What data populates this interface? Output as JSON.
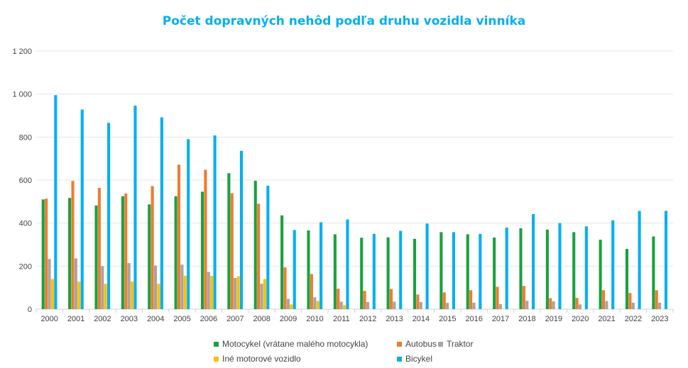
{
  "chart_data": {
    "type": "bar",
    "title": "Počet dopravných nehôd podľa druhu vozidla vinníka",
    "xlabel": "",
    "ylabel": "",
    "ylim": [
      0,
      1200
    ],
    "yticks": [
      0,
      200,
      400,
      600,
      800,
      1000,
      1200
    ],
    "ytick_labels": [
      "0",
      "200",
      "400",
      "600",
      "800",
      "1 000",
      "1 200"
    ],
    "grid": "horizontal",
    "legend_position": "bottom",
    "title_color": "#00B0F0",
    "categories": [
      "2000",
      "2001",
      "2002",
      "2003",
      "2004",
      "2005",
      "2006",
      "2007",
      "2008",
      "2009",
      "2010",
      "2011",
      "2012",
      "2013",
      "2014",
      "2015",
      "2016",
      "2017",
      "2018",
      "2019",
      "2020",
      "2021",
      "2022",
      "2023"
    ],
    "series": [
      {
        "name": "Motocykel (vrátane malého motocykla)",
        "color": "#1BA13F",
        "values": [
          510,
          517,
          482,
          525,
          487,
          525,
          546,
          632,
          597,
          436,
          366,
          348,
          332,
          334,
          327,
          358,
          348,
          333,
          376,
          370,
          358,
          323,
          280,
          338
        ]
      },
      {
        "name": "Autobus",
        "color": "#ED7D31",
        "values": [
          514,
          596,
          564,
          538,
          572,
          672,
          648,
          539,
          490,
          194,
          163,
          95,
          85,
          94,
          68,
          78,
          88,
          104,
          108,
          51,
          52,
          88,
          75,
          88
        ]
      },
      {
        "name": "Traktor",
        "color": "#A5A5A5",
        "values": [
          233,
          236,
          200,
          214,
          203,
          207,
          173,
          145,
          118,
          48,
          55,
          35,
          33,
          35,
          33,
          29,
          30,
          23,
          39,
          36,
          22,
          38,
          30,
          30
        ]
      },
      {
        "name": "Iné motorové vozidlo",
        "color": "#FFC000",
        "values": [
          140,
          128,
          118,
          128,
          118,
          155,
          155,
          153,
          140,
          22,
          38,
          18,
          0,
          0,
          0,
          0,
          0,
          0,
          0,
          0,
          0,
          0,
          0,
          0
        ]
      },
      {
        "name": "Bicykel",
        "color": "#00B0F0",
        "values": [
          995,
          928,
          866,
          946,
          892,
          790,
          808,
          736,
          574,
          368,
          404,
          417,
          350,
          364,
          398,
          358,
          350,
          379,
          442,
          400,
          385,
          413,
          457,
          457
        ]
      }
    ]
  }
}
